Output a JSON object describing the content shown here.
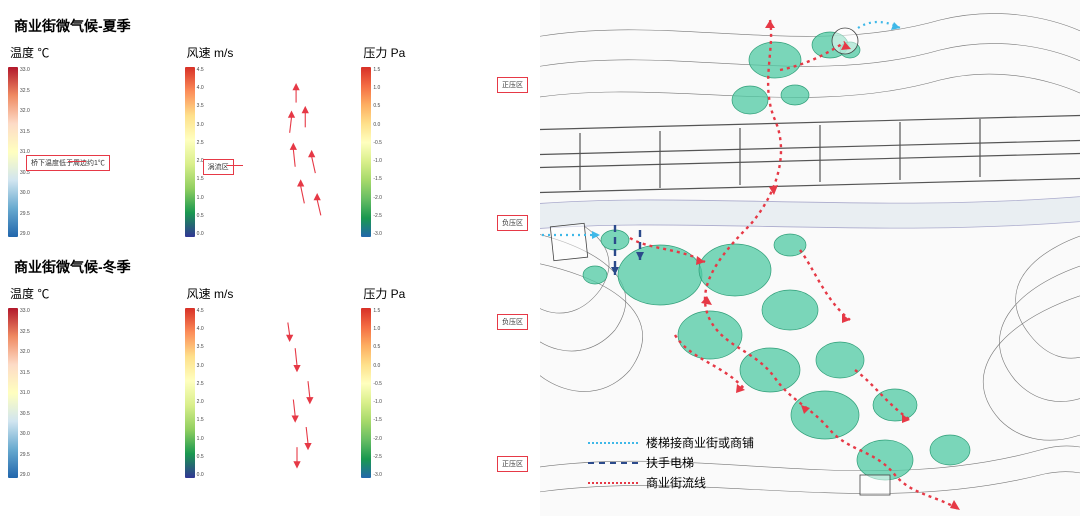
{
  "left": {
    "summer_title": "商业街微气候-夏季",
    "winter_title": "商业街微气候-冬季",
    "cols": {
      "temp": {
        "label": "温度 ℃",
        "ticks": [
          "33.0",
          "32.5",
          "32.0",
          "31.5",
          "31.0",
          "30.5",
          "30.0",
          "29.5",
          "29.0"
        ],
        "bar_gradient": "linear-gradient(to bottom,#b2182b,#ef8a62,#fddbc7,#ffffbf,#d1e5f0,#67a9cf,#2166ac)"
      },
      "wind": {
        "label": "风速 m/s",
        "ticks": [
          "4.5",
          "4.0",
          "3.5",
          "3.0",
          "2.5",
          "2.0",
          "1.5",
          "1.0",
          "0.5",
          "0.0"
        ],
        "bar_gradient": "linear-gradient(to bottom,#d73027,#fc8d59,#fee08b,#ffffbf,#d9ef8b,#91cf60,#1a9850,#313695)"
      },
      "pres": {
        "label": "压力 Pa",
        "ticks": [
          "1.5",
          "1.0",
          "0.5",
          "0.0",
          "-0.5",
          "-1.0",
          "-1.5",
          "-2.0",
          "-2.5",
          "-3.0"
        ],
        "bar_gradient": "linear-gradient(to bottom,#d73027,#f46d43,#fdae61,#fee08b,#ffffbf,#d9ef8b,#a6d96a,#66bd63,#1a9850,#2166ac)"
      }
    },
    "shape_gradients": {
      "temp_summer": "linear-gradient(160deg,#d9ef8b 0%,#66bd63 25%,#3288bd 55%,#5e4fa2 75%,#3288bd 100%)",
      "wind_summer": "linear-gradient(170deg,#fee08b 0%,#66bd63 20%,#3288bd 40%,#5e4fa2 60%,#66bd63 80%,#9e0142 100%)",
      "pres_summer": "linear-gradient(175deg,#d73027 0%,#fdae61 15%,#fee08b 30%,#a6d96a 50%,#66bd63 70%,#3288bd 90%,#313695 100%)",
      "temp_winter": "linear-gradient(165deg,#abd9e9 0%,#74add1 30%,#4575b4 55%,#313695 80%,#4575b4 100%)",
      "wind_winter": "linear-gradient(170deg,#fdae61 0%,#a6d96a 20%,#3288bd 45%,#5e4fa2 65%,#66bd63 85%,#9e0142 100%)",
      "pres_winter": "linear-gradient(5deg,#d73027 0%,#fdae61 18%,#fee08b 35%,#a6d96a 55%,#66bd63 72%,#3288bd 88%,#313695 100%)"
    },
    "callouts": {
      "temp_summer": "桥下温度低于周边约1℃",
      "wind_summer": "涡流区",
      "pres_summer_pos": "正压区",
      "pres_summer_neg": "负压区",
      "pres_winter_pos": "正压区",
      "pres_winter_neg": "负压区"
    },
    "arrow_color": "#e63946",
    "dot_holes": [
      [
        58,
        20
      ],
      [
        55,
        46
      ],
      [
        60,
        82
      ],
      [
        48,
        132
      ],
      [
        66,
        148
      ],
      [
        60,
        160
      ],
      [
        42,
        40
      ],
      [
        45,
        100
      ]
    ]
  },
  "right": {
    "contours_color": "#777",
    "building_color": "#555",
    "green_pad_color": "#4fc9a3",
    "green_pad_opacity": 0.75,
    "arrows": {
      "stair": "#3fb8e8",
      "escalator": "#2b4a8b",
      "flow": "#e63946"
    },
    "legend": {
      "stair": "楼梯接商业街或商铺",
      "escalator": "扶手电梯",
      "flow": "商业街流线"
    }
  }
}
